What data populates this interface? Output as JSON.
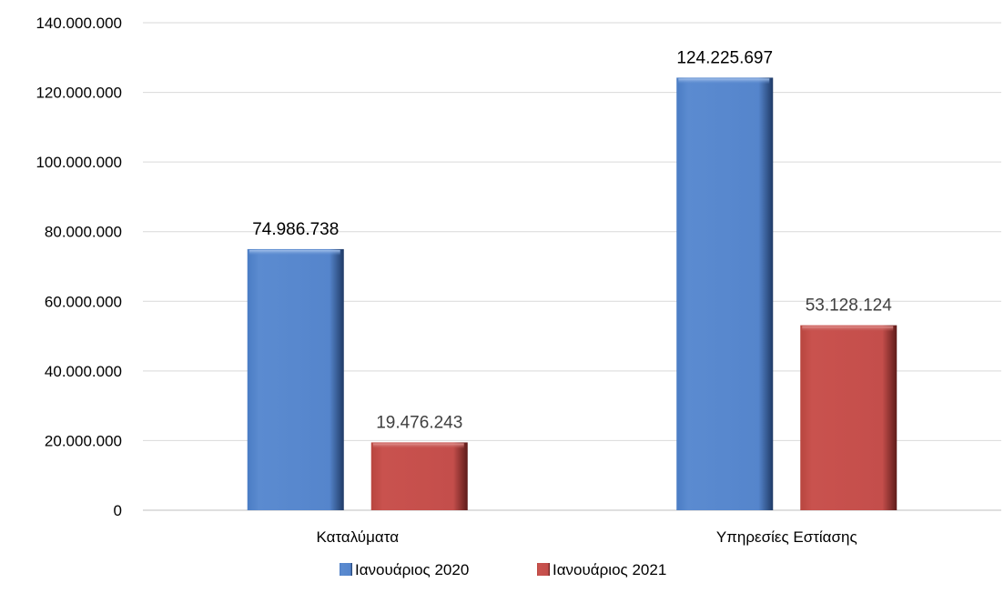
{
  "chart_data": {
    "type": "bar",
    "title": "",
    "xlabel": "",
    "ylabel": "",
    "categories": [
      "Καταλύματα",
      "Υπηρεσίες Εστίασης"
    ],
    "series": [
      {
        "name": "Ιανουάριος 2020",
        "values": [
          74986738,
          124225697
        ],
        "labels": [
          "74.986.738",
          "124.225.697"
        ],
        "color": "#5B8BD0"
      },
      {
        "name": "Ιανουάριος 2021",
        "values": [
          19476243,
          53128124
        ],
        "labels": [
          "19.476.243",
          "53.128.124"
        ],
        "color": "#C0504D"
      }
    ],
    "ylim": [
      0,
      140000000
    ],
    "yticks": [
      0,
      20000000,
      40000000,
      60000000,
      80000000,
      100000000,
      120000000,
      140000000
    ],
    "ytick_labels": [
      "0",
      "20.000.000",
      "40.000.000",
      "60.000.000",
      "80.000.000",
      "100.000.000",
      "120.000.000",
      "140.000.000"
    ],
    "grid": true,
    "legend_position": "bottom"
  }
}
